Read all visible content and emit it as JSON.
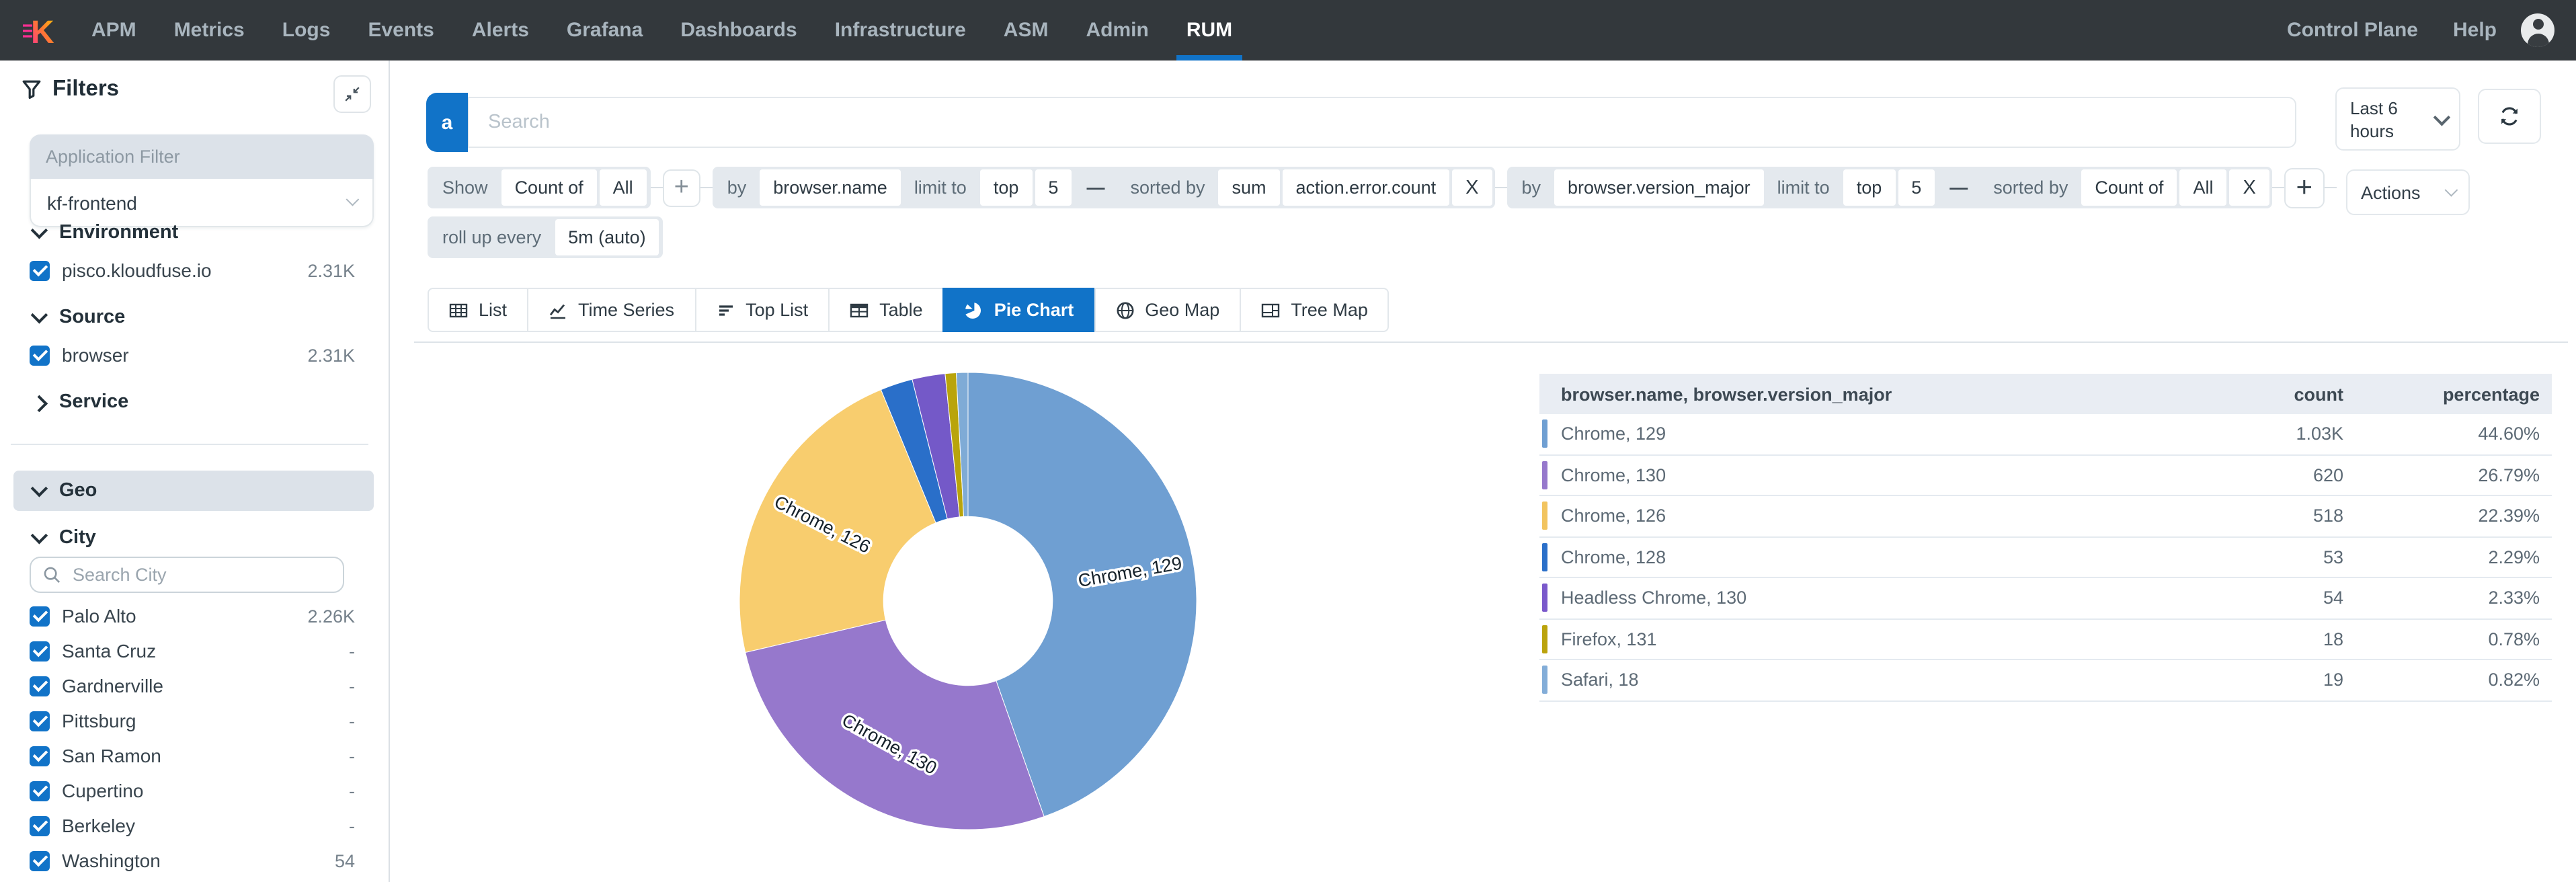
{
  "topnav": {
    "brand_icon": "kloudfuse-logo",
    "items": [
      "APM",
      "Metrics",
      "Logs",
      "Events",
      "Alerts",
      "Grafana",
      "Dashboards",
      "Infrastructure",
      "ASM",
      "Admin",
      "RUM"
    ],
    "active_item": "RUM",
    "right_items": [
      "Control Plane",
      "Help"
    ]
  },
  "sidebar": {
    "title": "Filters",
    "application_filter": {
      "label": "Application Filter",
      "value": "kf-frontend"
    },
    "sections": [
      {
        "name": "Environment",
        "expanded": true,
        "items": [
          {
            "label": "pisco.kloudfuse.io",
            "count": "2.31K",
            "checked": true
          }
        ]
      },
      {
        "name": "Source",
        "expanded": true,
        "items": [
          {
            "label": "browser",
            "count": "2.31K",
            "checked": true
          }
        ]
      },
      {
        "name": "Service",
        "expanded": false,
        "items": []
      }
    ],
    "geo": {
      "name": "Geo",
      "expanded": true
    },
    "city": {
      "name": "City",
      "expanded": true,
      "search_placeholder": "Search City",
      "items": [
        {
          "label": "Palo Alto",
          "count": "2.26K",
          "checked": true
        },
        {
          "label": "Santa Cruz",
          "count": "-",
          "checked": true
        },
        {
          "label": "Gardnerville",
          "count": "-",
          "checked": true
        },
        {
          "label": "Pittsburg",
          "count": "-",
          "checked": true
        },
        {
          "label": "San Ramon",
          "count": "-",
          "checked": true
        },
        {
          "label": "Cupertino",
          "count": "-",
          "checked": true
        },
        {
          "label": "Berkeley",
          "count": "-",
          "checked": true
        },
        {
          "label": "Washington",
          "count": "54",
          "checked": true
        }
      ]
    }
  },
  "search": {
    "badge": "a",
    "placeholder": "Search"
  },
  "query": {
    "segments": [
      {
        "type": "group",
        "parts": [
          {
            "text": "Show",
            "kind": "muted"
          },
          {
            "text": "Count of",
            "kind": "white"
          },
          {
            "text": "All",
            "kind": "white"
          }
        ]
      },
      {
        "type": "plus"
      },
      {
        "type": "group",
        "parts": [
          {
            "text": "by",
            "kind": "muted"
          },
          {
            "text": "browser.name",
            "kind": "white"
          },
          {
            "text": "limit to",
            "kind": "muted"
          },
          {
            "text": "top",
            "kind": "white"
          },
          {
            "text": "5",
            "kind": "white"
          },
          {
            "text": "—",
            "kind": "minus"
          },
          {
            "text": "sorted by",
            "kind": "muted"
          },
          {
            "text": "sum",
            "kind": "white"
          },
          {
            "text": "action.error.count",
            "kind": "white"
          },
          {
            "text": "X",
            "kind": "close"
          }
        ]
      },
      {
        "type": "group",
        "parts": [
          {
            "text": "by",
            "kind": "muted"
          },
          {
            "text": "browser.version_major",
            "kind": "white"
          },
          {
            "text": "limit to",
            "kind": "muted"
          },
          {
            "text": "top",
            "kind": "white"
          },
          {
            "text": "5",
            "kind": "white"
          },
          {
            "text": "—",
            "kind": "minus"
          },
          {
            "text": "sorted by",
            "kind": "muted"
          },
          {
            "text": "Count of",
            "kind": "white"
          },
          {
            "text": "All",
            "kind": "white"
          },
          {
            "text": "X",
            "kind": "close"
          }
        ]
      },
      {
        "type": "plus"
      }
    ],
    "rollup": {
      "label": "roll up every",
      "value": "5m (auto)"
    }
  },
  "tabs": {
    "items": [
      {
        "label": "List",
        "icon": "list-icon"
      },
      {
        "label": "Time Series",
        "icon": "time-series-icon"
      },
      {
        "label": "Top List",
        "icon": "top-list-icon"
      },
      {
        "label": "Table",
        "icon": "table-icon"
      },
      {
        "label": "Pie Chart",
        "icon": "pie-chart-icon"
      },
      {
        "label": "Geo Map",
        "icon": "geo-map-icon"
      },
      {
        "label": "Tree Map",
        "icon": "tree-map-icon"
      }
    ],
    "active": "Pie Chart"
  },
  "controls": {
    "time_range": "Last 6 hours",
    "actions_label": "Actions"
  },
  "chart_data": {
    "type": "pie",
    "donut": true,
    "title": "",
    "categories": [
      "Chrome, 129",
      "Chrome, 130",
      "Chrome, 126",
      "Chrome, 128",
      "Headless Chrome, 130",
      "Firefox, 131",
      "Safari, 18"
    ],
    "values": [
      44.6,
      26.79,
      22.39,
      2.29,
      2.33,
      0.78,
      0.82
    ],
    "unit": "percent",
    "counts": [
      "1.03K",
      "620",
      "518",
      "53",
      "54",
      "18",
      "19"
    ],
    "colors": [
      "#6f9fd2",
      "#9678cc",
      "#f8cd6e",
      "#2a6fc9",
      "#7459c8",
      "#b9a40b",
      "#7fabd6"
    ],
    "start_angle": "top",
    "direction": "clockwise",
    "inner_radius_ratio": 0.37,
    "legend": "none",
    "labels": [
      {
        "text": "Chrome, 129",
        "rotate": -10
      },
      {
        "text": "Chrome, 130",
        "rotate": 29
      },
      {
        "text": "Chrome, 126",
        "rotate": 27
      }
    ]
  },
  "table": {
    "columns": [
      "browser.name, browser.version_major",
      "count",
      "percentage"
    ],
    "rows": [
      {
        "name": "Chrome, 129",
        "count": "1.03K",
        "percentage": "44.60%",
        "color": "#6f9fd2"
      },
      {
        "name": "Chrome, 130",
        "count": "620",
        "percentage": "26.79%",
        "color": "#9678cc"
      },
      {
        "name": "Chrome, 126",
        "count": "518",
        "percentage": "22.39%",
        "color": "#f2c45f"
      },
      {
        "name": "Chrome, 128",
        "count": "53",
        "percentage": "2.29%",
        "color": "#2a6fc9"
      },
      {
        "name": "Headless Chrome, 130",
        "count": "54",
        "percentage": "2.33%",
        "color": "#7a59cb"
      },
      {
        "name": "Firefox, 131",
        "count": "18",
        "percentage": "0.78%",
        "color": "#bba30c"
      },
      {
        "name": "Safari, 18",
        "count": "19",
        "percentage": "0.82%",
        "color": "#83add8"
      }
    ]
  }
}
